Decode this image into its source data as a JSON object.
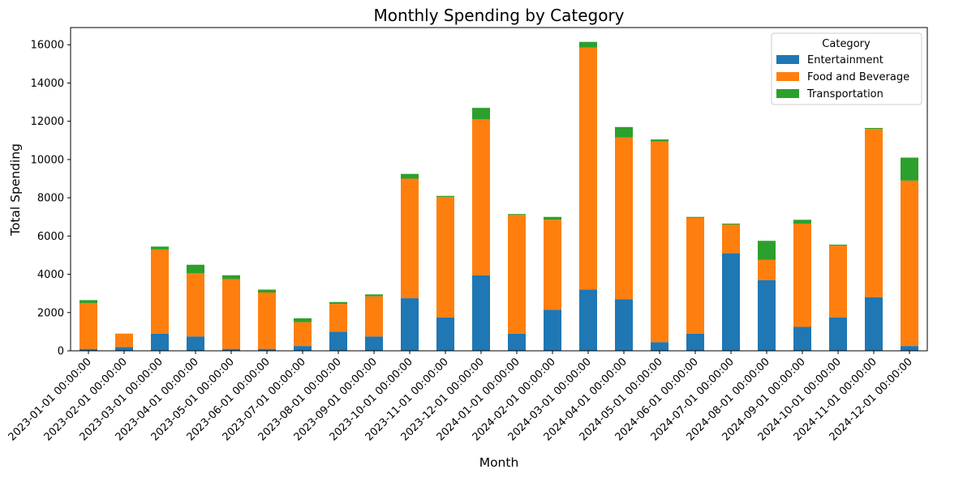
{
  "chart_data": {
    "type": "bar",
    "stacked": true,
    "title": "Monthly Spending by Category",
    "xlabel": "Month",
    "ylabel": "Total Spending",
    "ylim": [
      0,
      16900
    ],
    "yticks": [
      0,
      2000,
      4000,
      6000,
      8000,
      10000,
      12000,
      14000,
      16000
    ],
    "grid": false,
    "legend": {
      "title": "Category",
      "placement": "top-right"
    },
    "categories": [
      "2023-01-01 00:00:00",
      "2023-02-01 00:00:00",
      "2023-03-01 00:00:00",
      "2023-04-01 00:00:00",
      "2023-05-01 00:00:00",
      "2023-06-01 00:00:00",
      "2023-07-01 00:00:00",
      "2023-08-01 00:00:00",
      "2023-09-01 00:00:00",
      "2023-10-01 00:00:00",
      "2023-11-01 00:00:00",
      "2023-12-01 00:00:00",
      "2024-01-01 00:00:00",
      "2024-02-01 00:00:00",
      "2024-03-01 00:00:00",
      "2024-04-01 00:00:00",
      "2024-05-01 00:00:00",
      "2024-06-01 00:00:00",
      "2024-07-01 00:00:00",
      "2024-08-01 00:00:00",
      "2024-09-01 00:00:00",
      "2024-10-01 00:00:00",
      "2024-11-01 00:00:00",
      "2024-12-01 00:00:00"
    ],
    "series": [
      {
        "name": "Entertainment",
        "color": "#1f77b4",
        "values": [
          100,
          200,
          900,
          750,
          100,
          100,
          250,
          1000,
          750,
          2750,
          1750,
          3950,
          900,
          2150,
          3200,
          2700,
          450,
          900,
          5100,
          3700,
          1250,
          1750,
          2800,
          250
        ]
      },
      {
        "name": "Food and Beverage",
        "color": "#ff7f0e",
        "values": [
          2400,
          700,
          4400,
          3300,
          3650,
          2950,
          1250,
          1450,
          2100,
          6250,
          6300,
          8150,
          6200,
          4700,
          12650,
          8450,
          10500,
          6050,
          1500,
          1050,
          5400,
          3750,
          8800,
          8650
        ]
      },
      {
        "name": "Transportation",
        "color": "#2ca02c",
        "values": [
          150,
          0,
          150,
          450,
          200,
          150,
          200,
          100,
          100,
          250,
          50,
          600,
          50,
          150,
          300,
          550,
          100,
          50,
          50,
          1000,
          200,
          50,
          50,
          1200
        ]
      }
    ]
  }
}
